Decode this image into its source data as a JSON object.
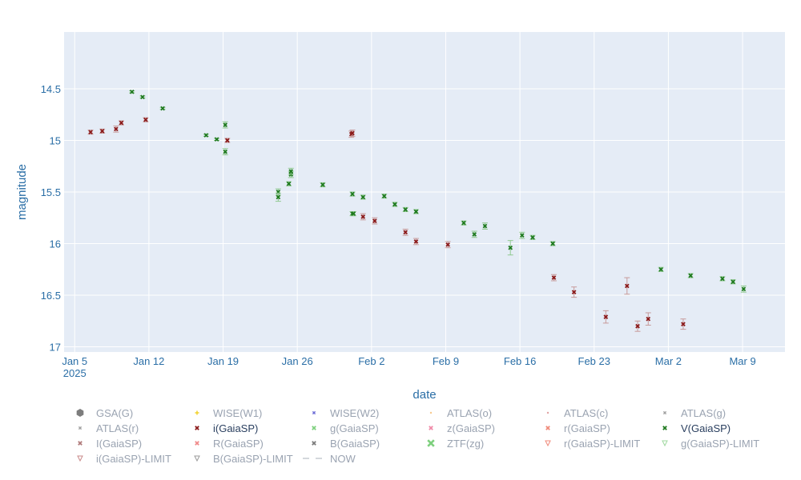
{
  "chart_data": {
    "type": "scatter",
    "xlabel": "date",
    "ylabel": "magnitude",
    "x_range": [
      "2025-01-04",
      "2025-03-13"
    ],
    "ylim": [
      17.05,
      13.95
    ],
    "y_reversed": true,
    "x_ticks": [
      {
        "date": "2025-01-05",
        "label": "Jan 5",
        "sub": "2025"
      },
      {
        "date": "2025-01-12",
        "label": "Jan 12",
        "sub": ""
      },
      {
        "date": "2025-01-19",
        "label": "Jan 19",
        "sub": ""
      },
      {
        "date": "2025-01-26",
        "label": "Jan 26",
        "sub": ""
      },
      {
        "date": "2025-02-02",
        "label": "Feb 2",
        "sub": ""
      },
      {
        "date": "2025-02-09",
        "label": "Feb 9",
        "sub": ""
      },
      {
        "date": "2025-02-16",
        "label": "Feb 16",
        "sub": ""
      },
      {
        "date": "2025-02-23",
        "label": "Feb 23",
        "sub": ""
      },
      {
        "date": "2025-03-02",
        "label": "Mar 2",
        "sub": ""
      },
      {
        "date": "2025-03-09",
        "label": "Mar 9",
        "sub": ""
      }
    ],
    "y_ticks": [
      {
        "value": 14.5,
        "label": "14.5"
      },
      {
        "value": 15,
        "label": "15"
      },
      {
        "value": 15.5,
        "label": "15.5"
      },
      {
        "value": 16,
        "label": "16"
      },
      {
        "value": 16.5,
        "label": "16.5"
      },
      {
        "value": 17,
        "label": "17"
      }
    ],
    "series": [
      {
        "name": "i(GaiaSP)",
        "color": "#8b1a1a",
        "active": true,
        "points": [
          {
            "x": 6.5,
            "y": 14.92,
            "err": 0.02
          },
          {
            "x": 7.6,
            "y": 14.91,
            "err": 0.02
          },
          {
            "x": 8.9,
            "y": 14.89,
            "err": 0.03
          },
          {
            "x": 9.4,
            "y": 14.83,
            "err": 0.02
          },
          {
            "x": 11.7,
            "y": 14.8,
            "err": 0.02
          },
          {
            "x": 19.4,
            "y": 15.0,
            "err": 0.02
          },
          {
            "x": 31.1,
            "y": 14.94,
            "err": 0.03
          },
          {
            "x": 31.2,
            "y": 14.93,
            "err": 0.03
          },
          {
            "x": 32.2,
            "y": 15.74,
            "err": 0.03
          },
          {
            "x": 33.3,
            "y": 15.78,
            "err": 0.03
          },
          {
            "x": 36.2,
            "y": 15.89,
            "err": 0.03
          },
          {
            "x": 37.2,
            "y": 15.98,
            "err": 0.03
          },
          {
            "x": 40.2,
            "y": 16.01,
            "err": 0.03
          },
          {
            "x": 50.2,
            "y": 16.33,
            "err": 0.03
          },
          {
            "x": 52.1,
            "y": 16.47,
            "err": 0.05
          },
          {
            "x": 55.1,
            "y": 16.71,
            "err": 0.06
          },
          {
            "x": 57.1,
            "y": 16.41,
            "err": 0.08
          },
          {
            "x": 58.1,
            "y": 16.8,
            "err": 0.05
          },
          {
            "x": 59.1,
            "y": 16.73,
            "err": 0.06
          },
          {
            "x": 62.4,
            "y": 16.78,
            "err": 0.05
          }
        ]
      },
      {
        "name": "V(GaiaSP)",
        "color": "#1f7a1f",
        "active": true,
        "points": [
          {
            "x": 10.4,
            "y": 14.53,
            "err": 0.01
          },
          {
            "x": 11.4,
            "y": 14.58,
            "err": 0.01
          },
          {
            "x": 13.3,
            "y": 14.69,
            "err": 0.01
          },
          {
            "x": 17.4,
            "y": 14.95,
            "err": 0.01
          },
          {
            "x": 18.4,
            "y": 14.99,
            "err": 0.01
          },
          {
            "x": 19.2,
            "y": 14.85,
            "err": 0.03
          },
          {
            "x": 19.2,
            "y": 15.11,
            "err": 0.03
          },
          {
            "x": 24.2,
            "y": 15.5,
            "err": 0.03
          },
          {
            "x": 24.2,
            "y": 15.55,
            "err": 0.04
          },
          {
            "x": 25.2,
            "y": 15.42,
            "err": 0.02
          },
          {
            "x": 25.4,
            "y": 15.33,
            "err": 0.03
          },
          {
            "x": 25.4,
            "y": 15.3,
            "err": 0.03
          },
          {
            "x": 28.4,
            "y": 15.43,
            "err": 0.02
          },
          {
            "x": 31.2,
            "y": 15.52,
            "err": 0.02
          },
          {
            "x": 31.2,
            "y": 15.71,
            "err": 0.02
          },
          {
            "x": 31.3,
            "y": 15.71,
            "err": 0.02
          },
          {
            "x": 32.2,
            "y": 15.55,
            "err": 0.02
          },
          {
            "x": 34.2,
            "y": 15.54,
            "err": 0.02
          },
          {
            "x": 35.2,
            "y": 15.62,
            "err": 0.02
          },
          {
            "x": 36.2,
            "y": 15.67,
            "err": 0.02
          },
          {
            "x": 37.2,
            "y": 15.69,
            "err": 0.02
          },
          {
            "x": 41.7,
            "y": 15.8,
            "err": 0.02
          },
          {
            "x": 42.7,
            "y": 15.91,
            "err": 0.03
          },
          {
            "x": 43.7,
            "y": 15.83,
            "err": 0.03
          },
          {
            "x": 46.1,
            "y": 16.04,
            "err": 0.07
          },
          {
            "x": 47.2,
            "y": 15.92,
            "err": 0.03
          },
          {
            "x": 48.2,
            "y": 15.94,
            "err": 0.02
          },
          {
            "x": 50.1,
            "y": 16.0,
            "err": 0.02
          },
          {
            "x": 60.3,
            "y": 16.25,
            "err": 0.02
          },
          {
            "x": 63.1,
            "y": 16.31,
            "err": 0.02
          },
          {
            "x": 66.1,
            "y": 16.34,
            "err": 0.02
          },
          {
            "x": 67.1,
            "y": 16.37,
            "err": 0.02
          },
          {
            "x": 68.1,
            "y": 16.44,
            "err": 0.03
          }
        ]
      }
    ],
    "legend": [
      {
        "label": "GSA(G)",
        "symbol": "hexagon",
        "color": "#7d7d7d",
        "active": false
      },
      {
        "label": "WISE(W1)",
        "symbol": "star",
        "color": "#f2d22e",
        "active": false
      },
      {
        "label": "WISE(W2)",
        "symbol": "x-small",
        "color": "#6b6bd6",
        "active": false
      },
      {
        "label": "ATLAS(o)",
        "symbol": "dot-small",
        "color": "#f7c98d",
        "active": false
      },
      {
        "label": "ATLAS(c)",
        "symbol": "dot-small",
        "color": "#e0a3a3",
        "active": false
      },
      {
        "label": "ATLAS(g)",
        "symbol": "x-small",
        "color": "#a0a0a0",
        "active": false
      },
      {
        "label": "ATLAS(r)",
        "symbol": "x-small",
        "color": "#a0a0a0",
        "active": false
      },
      {
        "label": "i(GaiaSP)",
        "symbol": "x",
        "color": "#8b1a1a",
        "active": true
      },
      {
        "label": "WISE(W2)",
        "symbol": "x-small",
        "color": "#6b6bd6",
        "active": false,
        "skip": true
      },
      {
        "label": "g(GaiaSP)",
        "symbol": "x",
        "color": "#7ed07e",
        "active": false
      },
      {
        "label": "z(GaiaSP)",
        "symbol": "x",
        "color": "#f08aa8",
        "active": false
      },
      {
        "label": "r(GaiaSP)",
        "symbol": "x",
        "color": "#f08a7a",
        "active": false
      },
      {
        "label": "V(GaiaSP)",
        "symbol": "x",
        "color": "#1f7a1f",
        "active": true
      },
      {
        "label": "I(GaiaSP)",
        "symbol": "x",
        "color": "#b07a7a",
        "active": false
      },
      {
        "label": "R(GaiaSP)",
        "symbol": "x",
        "color": "#f08a8a",
        "active": false
      },
      {
        "label": "B(GaiaSP)",
        "symbol": "x",
        "color": "#7a7a7a",
        "active": false
      },
      {
        "label": "ZTF(zg)",
        "symbol": "x-big",
        "color": "#7ed07e",
        "active": false
      },
      {
        "label": "r(GaiaSP)-LIMIT",
        "symbol": "tri-down",
        "color": "#f08a7a",
        "active": false
      },
      {
        "label": "g(GaiaSP)-LIMIT",
        "symbol": "tri-down",
        "color": "#9fd89f",
        "active": false
      },
      {
        "label": "i(GaiaSP)-LIMIT",
        "symbol": "tri-down",
        "color": "#c98a8a",
        "active": false
      },
      {
        "label": "B(GaiaSP)-LIMIT",
        "symbol": "tri-down",
        "color": "#9a9a9a",
        "active": false
      },
      {
        "label": "NOW",
        "symbol": "dash",
        "color": "#aab0ba",
        "active": false
      }
    ]
  }
}
